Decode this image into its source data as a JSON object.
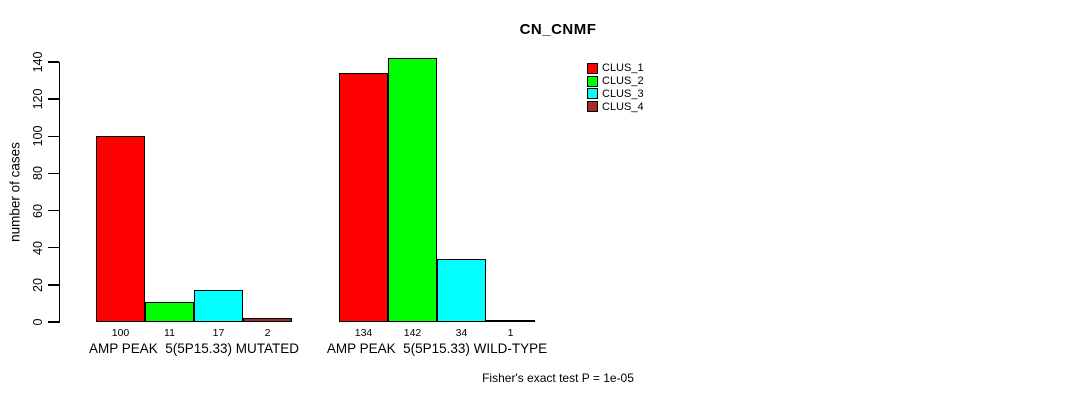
{
  "title": "CN_CNMF",
  "y_axis_label": "number of cases",
  "footer_note": "Fisher's exact test P = 1e-05",
  "legend": {
    "items": [
      {
        "label": "CLUS_1",
        "color": "#FF0000"
      },
      {
        "label": "CLUS_2",
        "color": "#00FF00"
      },
      {
        "label": "CLUS_3",
        "color": "#00FFFF"
      },
      {
        "label": "CLUS_4",
        "color": "#A52A2A"
      }
    ]
  },
  "chart_data": {
    "type": "bar",
    "title": "CN_CNMF",
    "ylabel": "number of cases",
    "xlabel": "",
    "ylim": [
      0,
      140
    ],
    "yticks": [
      0,
      20,
      40,
      60,
      80,
      100,
      120,
      140
    ],
    "grid": false,
    "legend_position": "top-right-outside",
    "categories": [
      "AMP PEAK  5(5P15.33) MUTATED",
      "AMP PEAK  5(5P15.33) WILD-TYPE"
    ],
    "series": [
      {
        "name": "CLUS_1",
        "color": "#FF0000",
        "values": [
          100,
          134
        ]
      },
      {
        "name": "CLUS_2",
        "color": "#00FF00",
        "values": [
          11,
          142
        ]
      },
      {
        "name": "CLUS_3",
        "color": "#00FFFF",
        "values": [
          17,
          34
        ]
      },
      {
        "name": "CLUS_4",
        "color": "#A52A2A",
        "values": [
          2,
          1
        ]
      }
    ],
    "bar_value_labels": [
      [
        100,
        11,
        17,
        2
      ],
      [
        134,
        142,
        34,
        1
      ]
    ],
    "annotation": "Fisher's exact test P = 1e-05"
  }
}
